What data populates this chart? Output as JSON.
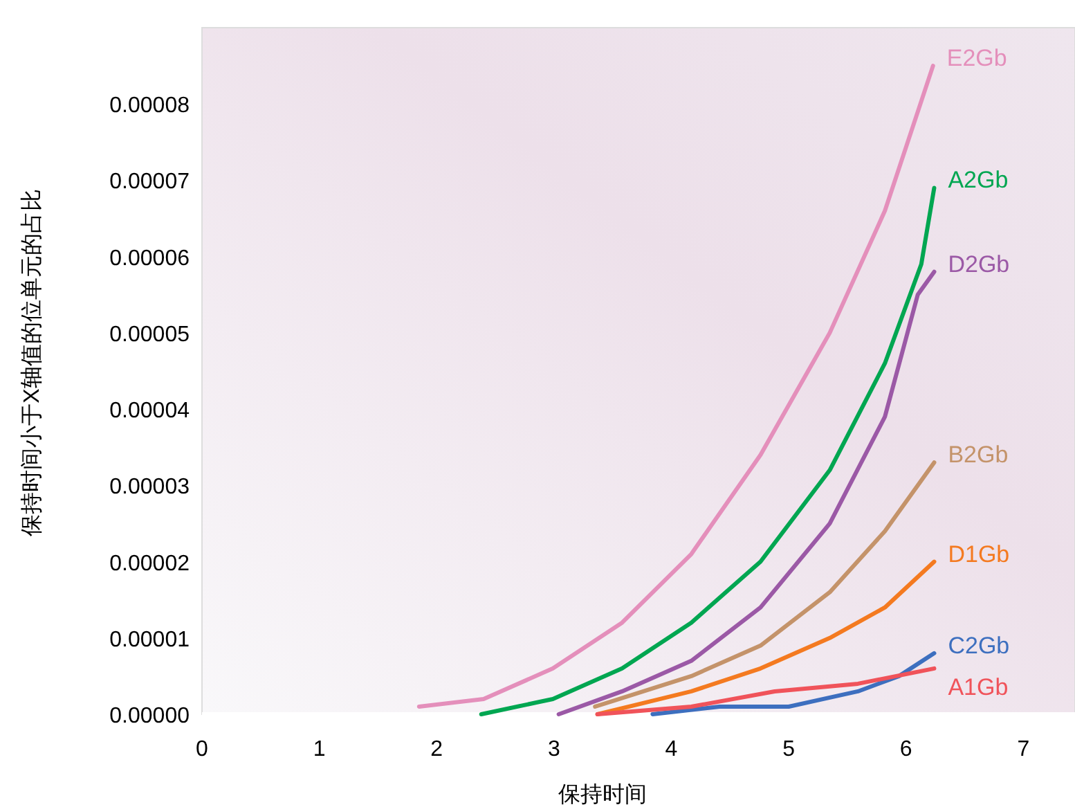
{
  "chart_data": {
    "type": "line",
    "xlabel": "保持时间",
    "ylabel": "保持时间小于X轴值的位单元的占比",
    "xlim": [
      0,
      7.44
    ],
    "xticks": [
      0,
      1,
      2,
      3,
      4,
      5,
      6,
      7
    ],
    "ylim": [
      0,
      9e-05
    ],
    "yticks": [
      {
        "value": 0,
        "label": "0.00000"
      },
      {
        "value": 1e-05,
        "label": "0.00001"
      },
      {
        "value": 2e-05,
        "label": "0.00002"
      },
      {
        "value": 3e-05,
        "label": "0.00003"
      },
      {
        "value": 4e-05,
        "label": "0.00004"
      },
      {
        "value": 5e-05,
        "label": "0.00005"
      },
      {
        "value": 6e-05,
        "label": "0.00006"
      },
      {
        "value": 7e-05,
        "label": "0.00007"
      },
      {
        "value": 8e-05,
        "label": "0.00008"
      }
    ],
    "grid": false,
    "series": [
      {
        "name": "E2Gb",
        "color": "#e48fbb",
        "x": [
          1.85,
          2.4,
          2.99,
          3.58,
          4.17,
          4.76,
          5.35,
          5.82,
          6.23
        ],
        "values": [
          1e-06,
          2e-06,
          6e-06,
          1.2e-05,
          2.1e-05,
          3.4e-05,
          5e-05,
          6.6e-05,
          8.5e-05
        ]
      },
      {
        "name": "A2Gb",
        "color": "#00a651",
        "x": [
          2.38,
          2.99,
          3.58,
          4.17,
          4.76,
          5.35,
          5.82,
          6.13,
          6.24
        ],
        "values": [
          0,
          2e-06,
          6e-06,
          1.2e-05,
          2e-05,
          3.2e-05,
          4.6e-05,
          5.9e-05,
          6.9e-05
        ]
      },
      {
        "name": "D2Gb",
        "color": "#9b59a6",
        "x": [
          3.04,
          3.58,
          4.17,
          4.76,
          5.35,
          5.82,
          6.1,
          6.24
        ],
        "values": [
          0,
          3e-06,
          7e-06,
          1.4e-05,
          2.5e-05,
          3.9e-05,
          5.5e-05,
          5.8e-05
        ]
      },
      {
        "name": "B2Gb",
        "color": "#c4936a",
        "x": [
          3.35,
          4.17,
          4.76,
          5.35,
          5.82,
          6.24
        ],
        "values": [
          1e-06,
          5e-06,
          9e-06,
          1.6e-05,
          2.4e-05,
          3.3e-05
        ]
      },
      {
        "name": "D1Gb",
        "color": "#f47a20",
        "x": [
          3.37,
          4.17,
          4.76,
          5.35,
          5.82,
          6.24
        ],
        "values": [
          0,
          3e-06,
          6e-06,
          1e-05,
          1.4e-05,
          2e-05
        ]
      },
      {
        "name": "C2Gb",
        "color": "#3d6fbf",
        "x": [
          3.84,
          4.41,
          5.0,
          5.59,
          5.94,
          6.24
        ],
        "values": [
          0,
          1e-06,
          1e-06,
          3e-06,
          5e-06,
          8e-06
        ]
      },
      {
        "name": "A1Gb",
        "color": "#f0535a",
        "x": [
          3.37,
          4.17,
          4.88,
          5.59,
          6.24
        ],
        "values": [
          0,
          1e-06,
          3e-06,
          4e-06,
          6e-06
        ]
      }
    ]
  }
}
